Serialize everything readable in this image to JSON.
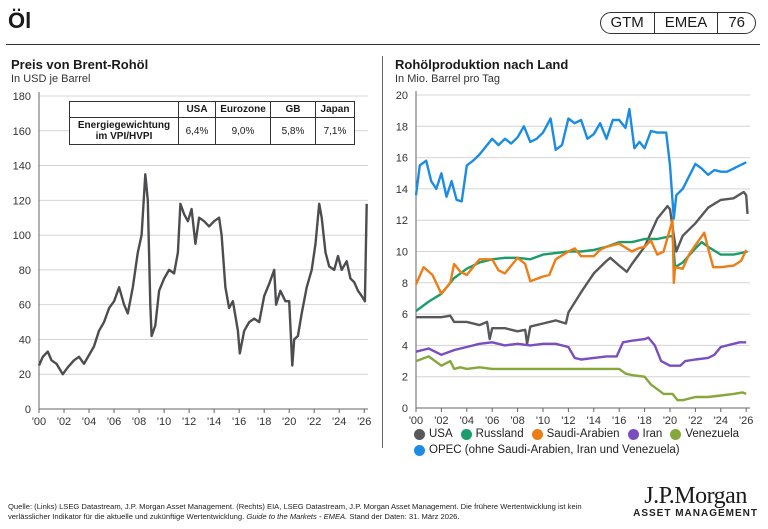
{
  "header": {
    "title": "Öl",
    "badge": [
      "GTM",
      "EMEA",
      "76"
    ]
  },
  "weights_table": {
    "columns": [
      "",
      "USA",
      "Eurozone",
      "GB",
      "Japan"
    ],
    "row_label": "Energiegewichtung im VPI/HVPI",
    "values": [
      "6,4%",
      "9,0%",
      "5,8%",
      "7,1%"
    ]
  },
  "chart_data": [
    {
      "type": "line",
      "title": "Preis von Brent-Rohöl",
      "subtitle": "In USD je Barrel",
      "xlabel": "",
      "ylabel": "",
      "ylim": [
        0,
        180
      ],
      "yticks": [
        0,
        20,
        40,
        60,
        80,
        100,
        120,
        140,
        160,
        180
      ],
      "xlim": [
        2000,
        2026.3
      ],
      "xticks": [
        "'00",
        "'02",
        "'04",
        "'06",
        "'08",
        "'10",
        "'12",
        "'14",
        "'16",
        "'18",
        "'20",
        "'22",
        "'24",
        "'26"
      ],
      "grid": true,
      "series": [
        {
          "name": "Brent",
          "color": "#4d4d4f",
          "x": [
            2000,
            2000.3,
            2000.7,
            2001,
            2001.4,
            2001.9,
            2002.3,
            2002.8,
            2003.2,
            2003.6,
            2004,
            2004.4,
            2004.8,
            2005.2,
            2005.6,
            2006,
            2006.4,
            2006.8,
            2007.1,
            2007.5,
            2007.9,
            2008.2,
            2008.5,
            2008.7,
            2008.9,
            2009.0,
            2009.3,
            2009.6,
            2010,
            2010.4,
            2010.8,
            2011.1,
            2011.3,
            2011.6,
            2011.9,
            2012.2,
            2012.5,
            2012.8,
            2013.2,
            2013.6,
            2014,
            2014.4,
            2014.6,
            2014.9,
            2015.2,
            2015.5,
            2015.9,
            2016.05,
            2016.4,
            2016.8,
            2017.2,
            2017.6,
            2018,
            2018.4,
            2018.8,
            2018.95,
            2019.3,
            2019.7,
            2020.0,
            2020.25,
            2020.4,
            2020.7,
            2021,
            2021.4,
            2021.8,
            2022.1,
            2022.4,
            2022.6,
            2022.9,
            2023.2,
            2023.6,
            2023.9,
            2024.2,
            2024.6,
            2024.9,
            2025.2,
            2025.5,
            2025.8,
            2026.05,
            2026.2
          ],
          "values": [
            25,
            30,
            33,
            28,
            26,
            20,
            24,
            28,
            30,
            26,
            31,
            36,
            45,
            50,
            58,
            62,
            70,
            60,
            55,
            70,
            90,
            100,
            135,
            120,
            60,
            42,
            48,
            68,
            75,
            80,
            78,
            90,
            118,
            112,
            108,
            115,
            95,
            110,
            108,
            105,
            108,
            110,
            100,
            70,
            58,
            62,
            45,
            32,
            45,
            50,
            52,
            50,
            65,
            72,
            80,
            60,
            68,
            62,
            62,
            25,
            40,
            42,
            55,
            70,
            80,
            95,
            118,
            110,
            90,
            82,
            80,
            88,
            80,
            85,
            75,
            73,
            68,
            65,
            62,
            118
          ]
        }
      ]
    },
    {
      "type": "line",
      "title": "Rohölproduktion nach Land",
      "subtitle": "In Mio. Barrel pro Tag",
      "xlabel": "",
      "ylabel": "",
      "ylim": [
        0,
        20
      ],
      "yticks": [
        0,
        2,
        4,
        6,
        8,
        10,
        12,
        14,
        16,
        18,
        20
      ],
      "xlim": [
        2000,
        2026.3
      ],
      "xticks": [
        "'00",
        "'02",
        "'04",
        "'06",
        "'08",
        "'10",
        "'12",
        "'14",
        "'16",
        "'18",
        "'20",
        "'22",
        "'24",
        "'26"
      ],
      "grid": true,
      "series": [
        {
          "name": "USA",
          "color": "#58585b",
          "x": [
            2000,
            2001,
            2002,
            2002.7,
            2003,
            2004,
            2005,
            2005.6,
            2005.8,
            2006,
            2007,
            2008,
            2008.6,
            2008.75,
            2009,
            2010,
            2011,
            2011.8,
            2012,
            2013,
            2014,
            2015,
            2015.3,
            2016,
            2016.6,
            2017,
            2018,
            2019,
            2019.8,
            2020.0,
            2020.3,
            2020.5,
            2021,
            2022,
            2023,
            2024,
            2025,
            2025.8,
            2026.0,
            2026.1
          ],
          "values": [
            5.8,
            5.8,
            5.8,
            5.9,
            5.5,
            5.5,
            5.3,
            5.5,
            4.4,
            5.1,
            5.1,
            4.9,
            5.0,
            4.1,
            5.2,
            5.4,
            5.6,
            5.4,
            6.1,
            7.4,
            8.6,
            9.4,
            9.6,
            9.1,
            8.7,
            9.2,
            10.3,
            12.1,
            12.9,
            12.7,
            11.0,
            10.0,
            11.0,
            11.8,
            12.8,
            13.3,
            13.4,
            13.8,
            13.6,
            12.4
          ]
        },
        {
          "name": "Russland",
          "color": "#1a9d6b",
          "x": [
            2000,
            2001,
            2002,
            2003,
            2004,
            2005,
            2006,
            2007,
            2008,
            2009,
            2010,
            2011,
            2012,
            2013,
            2014,
            2015,
            2016,
            2017,
            2018,
            2019,
            2020.2,
            2020.4,
            2021,
            2022,
            2022.5,
            2023,
            2024,
            2025,
            2025.6,
            2026.1
          ],
          "values": [
            6.2,
            6.8,
            7.3,
            8.3,
            8.9,
            9.3,
            9.5,
            9.6,
            9.6,
            9.5,
            9.8,
            9.9,
            10.0,
            10.0,
            10.1,
            10.3,
            10.6,
            10.6,
            10.8,
            10.8,
            11.0,
            9.0,
            9.3,
            10.2,
            10.6,
            10.3,
            9.8,
            9.8,
            9.9,
            10.0
          ]
        },
        {
          "name": "Saudi-Arabien",
          "color": "#ed7d17",
          "x": [
            2000,
            2000.6,
            2001.3,
            2002,
            2002.7,
            2003,
            2003.5,
            2004,
            2005,
            2006,
            2006.5,
            2007,
            2008,
            2008.6,
            2009,
            2010,
            2010.5,
            2011,
            2012,
            2012.5,
            2013,
            2014,
            2014.5,
            2015,
            2016,
            2017,
            2017.5,
            2018,
            2018.5,
            2019,
            2019.5,
            2020.2,
            2020.3,
            2020.4,
            2021,
            2021.5,
            2022,
            2022.7,
            2023.0,
            2023.4,
            2024,
            2025,
            2025.6,
            2026.0
          ],
          "values": [
            7.9,
            9.0,
            8.5,
            7.3,
            8.0,
            9.2,
            8.7,
            8.5,
            9.5,
            9.5,
            8.8,
            8.6,
            9.6,
            9.2,
            8.1,
            8.4,
            8.5,
            9.5,
            10.0,
            10.2,
            9.7,
            9.7,
            10.1,
            10.3,
            10.5,
            10.0,
            10.2,
            10.3,
            10.7,
            9.8,
            10.0,
            12.0,
            8.0,
            9.0,
            8.9,
            9.8,
            10.4,
            11.2,
            10.2,
            9.0,
            9.0,
            9.1,
            9.4,
            10.1
          ]
        },
        {
          "name": "Iran",
          "color": "#7a4ec1",
          "x": [
            2000,
            2001,
            2002,
            2003,
            2004,
            2005,
            2006,
            2007,
            2008,
            2009,
            2010,
            2011,
            2012,
            2012.5,
            2013,
            2014,
            2015,
            2015.8,
            2016.3,
            2017,
            2018,
            2018.3,
            2018.8,
            2019.3,
            2020,
            2020.8,
            2021.2,
            2022,
            2023,
            2023.5,
            2024,
            2025,
            2025.5,
            2026.0
          ],
          "values": [
            3.6,
            3.8,
            3.4,
            3.7,
            3.9,
            4.1,
            4.2,
            4.0,
            4.1,
            4.0,
            4.1,
            4.1,
            3.9,
            3.2,
            3.1,
            3.2,
            3.3,
            3.3,
            4.2,
            4.3,
            4.4,
            4.5,
            4.0,
            3.0,
            2.7,
            2.7,
            3.0,
            3.1,
            3.2,
            3.4,
            3.9,
            4.1,
            4.2,
            4.2
          ]
        },
        {
          "name": "Venezuela",
          "color": "#86a83b",
          "x": [
            2000,
            2001,
            2002,
            2002.7,
            2003,
            2003.5,
            2004,
            2005,
            2006,
            2008,
            2010,
            2012,
            2014,
            2016,
            2016.5,
            2017,
            2018,
            2018.5,
            2019,
            2019.5,
            2020.2,
            2020.6,
            2021,
            2022,
            2023,
            2024,
            2025,
            2025.7,
            2026.0
          ],
          "values": [
            3.0,
            3.3,
            2.7,
            3.0,
            2.5,
            2.6,
            2.5,
            2.6,
            2.5,
            2.5,
            2.5,
            2.5,
            2.5,
            2.5,
            2.2,
            2.1,
            2.0,
            1.5,
            1.2,
            0.9,
            0.9,
            0.5,
            0.5,
            0.7,
            0.7,
            0.8,
            0.9,
            1.0,
            0.9
          ]
        },
        {
          "name": "OPEC (ohne Saudi-Arabien, Iran und Venezuela)",
          "color": "#1c8ce3",
          "x": [
            2000,
            2000.3,
            2000.8,
            2001.2,
            2001.6,
            2002.0,
            2002.4,
            2002.8,
            2003.2,
            2003.6,
            2004,
            2004.5,
            2005,
            2005.5,
            2006,
            2006.5,
            2007,
            2007.5,
            2008,
            2008.5,
            2009.0,
            2009.5,
            2010,
            2010.6,
            2011.0,
            2011.5,
            2012,
            2012.5,
            2013,
            2013.5,
            2014,
            2014.5,
            2015,
            2015.5,
            2016,
            2016.5,
            2016.8,
            2017.2,
            2017.6,
            2018,
            2018.5,
            2019,
            2019.7,
            2020.0,
            2020.3,
            2020.5,
            2021,
            2021.5,
            2022,
            2022.5,
            2023,
            2023.5,
            2024,
            2024.5,
            2025,
            2025.5,
            2026.0
          ],
          "values": [
            13.6,
            15.5,
            15.8,
            14.5,
            14.0,
            15.0,
            13.5,
            14.5,
            13.3,
            13.2,
            15.5,
            15.8,
            16.2,
            16.7,
            17.2,
            16.8,
            17.2,
            16.9,
            17.3,
            18.0,
            17.0,
            17.2,
            17.6,
            18.5,
            16.5,
            16.8,
            18.5,
            18.2,
            18.4,
            17.2,
            17.5,
            18.2,
            17.2,
            18.4,
            18.4,
            17.9,
            19.1,
            16.6,
            17.0,
            16.6,
            17.7,
            17.6,
            17.6,
            15.5,
            12.1,
            13.6,
            14.0,
            14.8,
            15.6,
            15.3,
            14.9,
            15.2,
            15.1,
            15.1,
            15.3,
            15.5,
            15.7
          ]
        }
      ],
      "legend": {
        "placement": "bottom",
        "entries": [
          "USA",
          "Russland",
          "Saudi-Arabien",
          "Iran",
          "Venezuela",
          "OPEC (ohne Saudi-Arabien, Iran und Venezuela)"
        ]
      }
    }
  ],
  "footnote": {
    "text": "Quelle: (Links) LSEG Datastream, J.P. Morgan Asset Management. (Rechts) EIA, LSEG Datastream, J.P. Morgan Asset Management. Die frühere Wertentwicklung ist kein verlässlicher Indikator für die aktuelle und zukünftige Wertentwicklung. ",
    "guide": "Guide to the Markets - EMEA.",
    "date": " Stand der Daten: 31. März 2026."
  },
  "logo": {
    "name": "J.P.Morgan",
    "sub": "ASSET MANAGEMENT"
  }
}
